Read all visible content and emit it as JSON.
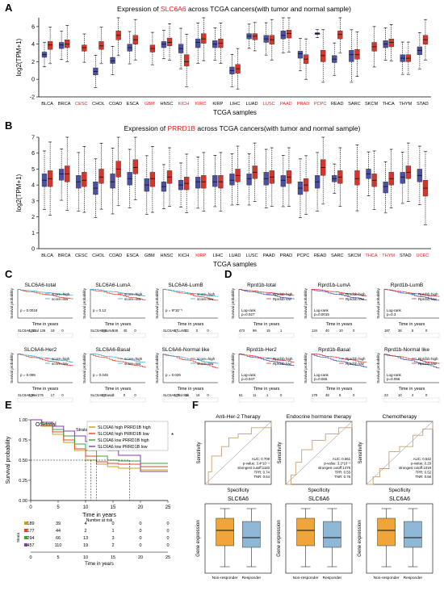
{
  "panels": {
    "A": "A",
    "B": "B",
    "C": "C",
    "D": "D",
    "E": "E",
    "F": "F"
  },
  "chart_data": [
    {
      "id": "A",
      "type": "box",
      "title_pre": "Expression of ",
      "title_gene": "SLC6A6",
      "title_post": " across TCGA cancers(with tumor and normal sample)",
      "ylabel": "log2(TPM+1)",
      "xlabel": "TCGA samples",
      "ylim": [
        -2,
        7
      ],
      "yticks": [
        -2,
        0,
        2,
        4,
        6
      ],
      "categories": [
        "BLCA",
        "BRCA",
        "CESC",
        "CHOL",
        "COAD",
        "ESCA",
        "GBM",
        "HNSC",
        "KICH",
        "KIRC",
        "KIRP",
        "LIHC",
        "LUAD",
        "LUSC",
        "PAAD",
        "PRAD",
        "PCPC",
        "READ",
        "SARC",
        "SKCM",
        "THCA",
        "THYM",
        "STAD"
      ],
      "red_labels": [
        "CESC",
        "GBM",
        "KICH",
        "KIRC",
        "LUSC",
        "PAAD",
        "PRAD",
        "PCPC"
      ],
      "normal": [
        [
          2.5,
          2.8,
          3.1
        ],
        [
          3.5,
          3.9,
          4.2
        ],
        [
          null,
          null,
          null
        ],
        [
          0.5,
          0.9,
          1.3
        ],
        [
          1.8,
          2.1,
          2.5
        ],
        [
          3.2,
          3.6,
          4.0
        ],
        [
          null,
          null,
          null
        ],
        [
          3.6,
          4.0,
          4.3
        ],
        [
          3.0,
          3.5,
          4.0
        ],
        [
          3.6,
          4.2,
          4.6
        ],
        [
          3.6,
          4.0,
          4.4
        ],
        [
          0.6,
          1.0,
          1.4
        ],
        [
          4.6,
          4.9,
          5.2
        ],
        [
          4.2,
          4.6,
          5.0
        ],
        [
          4.6,
          5.0,
          5.5
        ],
        [
          2.4,
          2.9,
          3.2
        ],
        [
          5.1,
          5.2,
          5.3
        ],
        [
          1.9,
          2.3,
          2.7
        ],
        [
          2.0,
          2.8,
          3.3
        ],
        [
          null,
          null,
          null
        ],
        [
          3.6,
          4.0,
          4.4
        ],
        [
          2.0,
          2.4,
          2.8
        ],
        [
          2.8,
          3.3,
          3.7
        ]
      ],
      "tumor": [
        [
          3.4,
          3.9,
          4.3
        ],
        [
          3.6,
          4.0,
          4.5
        ],
        [
          3.2,
          3.6,
          3.9
        ],
        [
          3.4,
          3.8,
          4.3
        ],
        [
          4.5,
          5.0,
          5.5
        ],
        [
          4.0,
          4.5,
          5.0
        ],
        [
          3.1,
          3.5,
          3.9
        ],
        [
          3.8,
          4.2,
          4.7
        ],
        [
          1.5,
          2.0,
          2.8
        ],
        [
          4.1,
          4.6,
          5.2
        ],
        [
          3.6,
          4.1,
          4.6
        ],
        [
          0.7,
          1.2,
          1.7
        ],
        [
          4.5,
          4.9,
          5.2
        ],
        [
          4.0,
          4.5,
          5.0
        ],
        [
          4.7,
          5.2,
          5.6
        ],
        [
          1.8,
          2.3,
          2.8
        ],
        [
          2.0,
          2.7,
          3.3
        ],
        [
          4.6,
          5.1,
          5.5
        ],
        [
          2.3,
          2.8,
          3.4
        ],
        [
          3.2,
          3.7,
          4.2
        ],
        [
          3.7,
          4.2,
          4.6
        ],
        [
          2.0,
          2.4,
          2.8
        ],
        [
          4.0,
          4.5,
          5.0
        ]
      ]
    },
    {
      "id": "B",
      "type": "box",
      "title_pre": "Expression of ",
      "title_gene": "PRRD1B",
      "title_post": " across TCGA cancers(with tumor and normal sample)",
      "ylabel": "log2(TPM+1)",
      "xlabel": "TCGA samples",
      "ylim": [
        0,
        7
      ],
      "yticks": [
        0,
        1,
        2,
        3,
        4,
        5,
        6,
        7
      ],
      "categories": [
        "BLCA",
        "BRCA",
        "CESC",
        "CHOL",
        "COAD",
        "ESCA",
        "GBM",
        "HNSC",
        "KICH",
        "KIRP",
        "LIHC",
        "LUAD",
        "LUSC",
        "PAAD",
        "PRAD",
        "PCPC",
        "READ",
        "SARC",
        "SKCM",
        "THCA",
        "THYM",
        "STAD",
        "UCEC"
      ],
      "red_labels": [
        "KIRP",
        "THCA",
        "THYM",
        "UCEC"
      ],
      "normal": [
        [
          3.9,
          4.3,
          4.7
        ],
        [
          4.3,
          4.7,
          5.0
        ],
        [
          3.8,
          4.2,
          4.6
        ],
        [
          3.4,
          3.8,
          4.2
        ],
        [
          3.8,
          4.2,
          4.7
        ],
        [
          4.0,
          4.4,
          4.8
        ],
        [
          3.6,
          4.0,
          4.4
        ],
        [
          3.6,
          3.9,
          4.2
        ],
        [
          3.7,
          4.0,
          4.3
        ],
        [
          3.8,
          4.2,
          4.5
        ],
        [
          3.9,
          4.2,
          4.6
        ],
        [
          4.0,
          4.3,
          4.7
        ],
        [
          4.0,
          4.4,
          4.7
        ],
        [
          4.0,
          4.4,
          4.8
        ],
        [
          3.9,
          4.3,
          4.6
        ],
        [
          3.4,
          3.8,
          4.2
        ],
        [
          3.8,
          4.2,
          4.6
        ],
        [
          4.2,
          4.4,
          4.6
        ],
        [
          null,
          null,
          null
        ],
        [
          4.4,
          4.7,
          5.0
        ],
        [
          3.5,
          3.9,
          4.2
        ],
        [
          4.1,
          4.5,
          4.8
        ],
        [
          4.2,
          4.6,
          5.0
        ]
      ],
      "tumor": [
        [
          3.9,
          4.4,
          4.9
        ],
        [
          4.2,
          4.7,
          5.2
        ],
        [
          3.9,
          4.3,
          4.8
        ],
        [
          4.1,
          4.5,
          5.0
        ],
        [
          4.5,
          5.0,
          5.5
        ],
        [
          4.7,
          5.1,
          5.6
        ],
        [
          3.9,
          4.4,
          4.8
        ],
        [
          4.1,
          4.5,
          4.9
        ],
        [
          3.7,
          4.1,
          4.5
        ],
        [
          3.8,
          4.2,
          4.6
        ],
        [
          3.8,
          4.2,
          4.6
        ],
        [
          4.2,
          4.6,
          5.0
        ],
        [
          4.4,
          4.8,
          5.2
        ],
        [
          4.1,
          4.5,
          4.9
        ],
        [
          4.1,
          4.5,
          4.9
        ],
        [
          3.6,
          4.0,
          4.4
        ],
        [
          4.6,
          5.1,
          5.6
        ],
        [
          4.1,
          4.5,
          4.9
        ],
        [
          4.0,
          4.4,
          4.9
        ],
        [
          3.9,
          4.3,
          4.7
        ],
        [
          4.0,
          4.4,
          4.8
        ],
        [
          4.4,
          4.8,
          5.2
        ],
        [
          3.3,
          3.8,
          4.3
        ]
      ]
    },
    {
      "id": "C",
      "type": "line",
      "group": "survival",
      "titles": [
        "SLC6A6-total",
        "SLC6A6-LumA",
        "SLC6A6-LumB",
        "SLC6A6-Her2",
        "SLC6A6-Basal",
        "SLC6A6-Normal like"
      ],
      "pvalues": [
        "p = 0.0018",
        "p = 0.12",
        "p = 9*10⁻⁵",
        "p = 0.095",
        "p = 0.045",
        "p = 0.026"
      ],
      "legend": [
        "score=high",
        "score=low"
      ],
      "ylabel": "Survival probability",
      "xlabel": "Time in years",
      "risk_rows": [
        [
          "SLC6A6_total",
          "1211",
          "136",
          "19",
          "0"
        ],
        [
          "SLC6A6_LumA",
          "468",
          "246",
          "45",
          "0"
        ],
        [
          "SLC6A6_LumB",
          "47",
          "22",
          "0",
          "0"
        ],
        [
          "SLC6A6_Her2",
          "106",
          "75",
          "17",
          "0"
        ],
        [
          "SLC6A6_Basal",
          "40",
          "2",
          "0",
          "0"
        ],
        [
          "SLC6A6_Normal",
          "107",
          "34",
          "16",
          "0"
        ]
      ]
    },
    {
      "id": "D",
      "type": "line",
      "group": "survival",
      "titles": [
        "Rprd1b-total",
        "Rprd1b-LumA",
        "Rprd1b-LumB",
        "Rprd1b-Her2",
        "Rprd1b-Basal",
        "Rprd1b-Normal like"
      ],
      "pvalues": [
        "Log-rank\np=0.027",
        "Log-rank\np=0.0015",
        "Log-rank\np=0.3",
        "Log-rank\np=0.047",
        "Log-rank\np=0.065",
        "Log-rank\np=0.056"
      ],
      "legend": [
        "Rprd1b high",
        "Rprd1b low"
      ],
      "ylabel": "Survival probability",
      "xlabel": "Time in years",
      "risk_rows": [
        [
          "473",
          "99",
          "15",
          "1"
        ],
        [
          "134",
          "40",
          "10",
          "0"
        ],
        [
          "187",
          "36",
          "5",
          "0"
        ],
        [
          "61",
          "11",
          "1",
          "0"
        ],
        [
          "179",
          "48",
          "6",
          "0"
        ],
        [
          "23",
          "10",
          "4",
          "0"
        ]
      ]
    },
    {
      "id": "E",
      "type": "line",
      "title": "OS-total",
      "strata_label": "Strata",
      "series": [
        {
          "name": "SLC6A6 high PRRD1B high",
          "color": "#c7a01c",
          "x": [
            0,
            2,
            4,
            6,
            8,
            10,
            12,
            14,
            16,
            20,
            25
          ],
          "y": [
            1.0,
            0.92,
            0.82,
            0.72,
            0.62,
            0.5,
            0.45,
            0.42,
            0.4,
            0.38,
            0.38
          ]
        },
        {
          "name": "SLC6A6 high PRRD1B low",
          "color": "#e8412b",
          "x": [
            0,
            2,
            4,
            6,
            8,
            10,
            12,
            14,
            16,
            20,
            25
          ],
          "y": [
            1.0,
            0.93,
            0.85,
            0.75,
            0.64,
            0.55,
            0.48,
            0.46,
            0.45,
            0.42,
            0.42
          ]
        },
        {
          "name": "SLC6A6 low PRRD1B high",
          "color": "#3aa63a",
          "x": [
            0,
            2,
            4,
            6,
            8,
            10,
            12,
            14,
            16,
            20,
            25
          ],
          "y": [
            1.0,
            0.95,
            0.88,
            0.8,
            0.7,
            0.62,
            0.55,
            0.5,
            0.49,
            0.46,
            0.46
          ]
        },
        {
          "name": "SLC6A6 low PRRD1B low",
          "color": "#7d3fb5",
          "x": [
            0,
            2,
            4,
            6,
            8,
            10,
            12,
            14,
            16,
            20,
            25
          ],
          "y": [
            1.0,
            0.97,
            0.92,
            0.86,
            0.8,
            0.73,
            0.67,
            0.62,
            0.56,
            0.36,
            0.36
          ]
        }
      ],
      "xticks": [
        0,
        5,
        10,
        15,
        20,
        25
      ],
      "yticks": [
        0.0,
        0.25,
        0.5,
        0.75,
        1.0
      ],
      "ylabel": "Survival probability",
      "xlabel": "Time in years",
      "pval_mark": "*",
      "risk_title": "Number at risk",
      "risk": [
        [
          "189",
          "39",
          "4",
          "0",
          "0",
          "0"
        ],
        [
          "177",
          "44",
          "2",
          "1",
          "0",
          "0"
        ],
        [
          "294",
          "66",
          "13",
          "3",
          "0",
          "0"
        ],
        [
          "457",
          "110",
          "19",
          "2",
          "0",
          "0"
        ]
      ]
    },
    {
      "id": "F",
      "type": "line",
      "group": "roc",
      "titles": [
        "Anti-Her-2 Therapy",
        "Endocrine hormone therapy",
        "Chemotherapy"
      ],
      "stats": [
        [
          "AUC: 0.708",
          "p-value: 3.4*10⁻⁴",
          "strongest cutoff:1183",
          "TPR: 0.74",
          "TNR: 0.64"
        ],
        [
          "AUC: 0.661",
          "p-value: 3.2*10⁻³",
          "strongest cutoff:1475",
          "TPR: 0.55",
          "TNR: 0.76"
        ],
        [
          "AUC: 0.542",
          "p-value: 0.29",
          "strongest cutoff:1019",
          "TPR: 0.52",
          "TNR: 0.66"
        ]
      ],
      "xlabel": "Specificity",
      "ylabel": "Sensitivity"
    },
    {
      "id": "F2",
      "type": "box",
      "title": "SLC6A6",
      "ylabel": "Gene expression",
      "categories": [
        "Non-responder",
        "Responder"
      ],
      "colors": [
        "#f0a53a",
        "#8fb8d6"
      ]
    }
  ]
}
